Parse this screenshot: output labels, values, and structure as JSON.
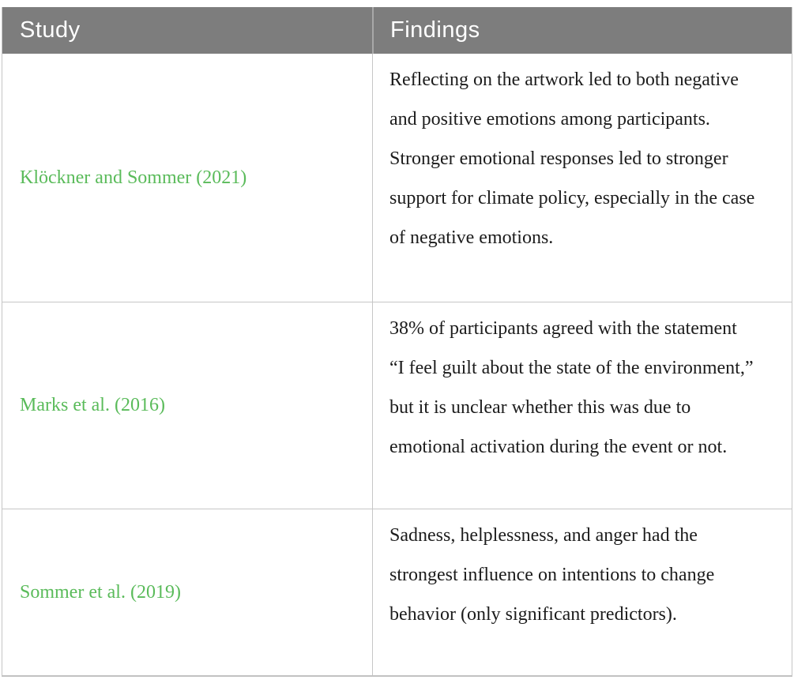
{
  "table": {
    "headers": {
      "study": "Study",
      "findings": "Findings"
    },
    "rows": [
      {
        "study": "Klöckner and Sommer (2021)",
        "finding": "Reflecting on the artwork led to both negative and positive emotions among participants. Stronger emotional responses led to stronger support for climate policy, especially in the case of negative emotions."
      },
      {
        "study": "Marks et al. (2016)",
        "finding": "38% of participants agreed with the statement “I feel guilt about the state of the environment,” but it is unclear whether this was due to emotional activation during the event or not."
      },
      {
        "study": "Sommer et al. (2019)",
        "finding": "Sadness, helplessness, and anger had the strongest influence on intentions to change behavior (only significant predictors)."
      }
    ],
    "colors": {
      "header_bg": "#7d7d7d",
      "header_text": "#ffffff",
      "study_link_green": "#5abb5a",
      "body_text": "#1c1c1c",
      "grid_border": "#c6c6c6"
    }
  }
}
